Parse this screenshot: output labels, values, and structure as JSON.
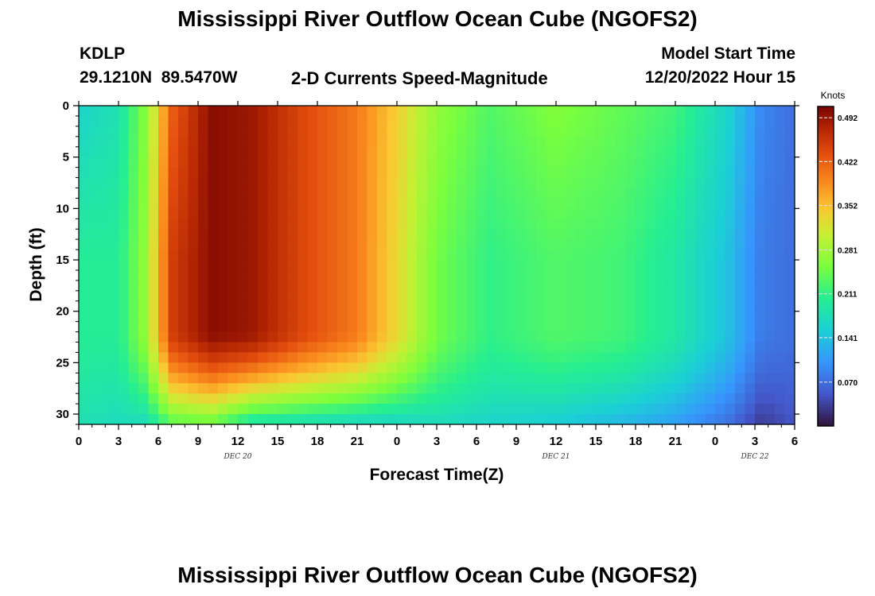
{
  "title": "Mississippi River Outflow Ocean Cube (NGOFS2)",
  "footer_title": "Mississippi River Outflow Ocean Cube (NGOFS2)",
  "station": {
    "id": "KDLP",
    "coords": "29.1210N  89.5470W"
  },
  "subtitle": "2-D Currents Speed-Magnitude",
  "model_start": {
    "label": "Model Start Time",
    "value": "12/20/2022 Hour 15"
  },
  "chart_data": {
    "type": "heatmap",
    "title": "2-D Currents Speed-Magnitude",
    "xlabel": "Forecast Time(Z)",
    "ylabel": "Depth (ft)",
    "x_hours_range": [
      0,
      54
    ],
    "x_tick_labels": [
      "0",
      "3",
      "6",
      "9",
      "12",
      "15",
      "18",
      "21",
      "0",
      "3",
      "6",
      "9",
      "12",
      "15",
      "18",
      "21",
      "0",
      "3",
      "6"
    ],
    "date_labels": [
      {
        "text": "DEC 20",
        "at_hour": 12
      },
      {
        "text": "DEC 21",
        "at_hour": 36
      },
      {
        "text": "DEC 22",
        "at_hour": 51
      }
    ],
    "y_range": [
      0,
      31
    ],
    "y_ticks": [
      0,
      5,
      10,
      15,
      20,
      25,
      30
    ],
    "y_inverted": true,
    "colorbar": {
      "unit": "Knots",
      "range": [
        0.0,
        0.51
      ],
      "tick_values": [
        0.492,
        0.422,
        0.352,
        0.281,
        0.211,
        0.141,
        0.07
      ],
      "tick_labels": [
        "0.492",
        "0.422",
        "0.352",
        "0.281",
        "0.211",
        "0.141",
        "0.070"
      ],
      "colormap": "turbo"
    },
    "approx_profile_knots": {
      "hours": [
        0,
        3,
        5,
        7,
        10,
        13,
        17,
        21,
        24,
        27,
        31,
        36,
        41,
        45,
        49,
        51.5,
        54
      ],
      "surface": [
        0.16,
        0.18,
        0.26,
        0.42,
        0.5,
        0.49,
        0.44,
        0.4,
        0.34,
        0.27,
        0.23,
        0.26,
        0.24,
        0.22,
        0.16,
        0.09,
        0.07
      ],
      "mid_depth": [
        0.2,
        0.2,
        0.27,
        0.45,
        0.5,
        0.49,
        0.44,
        0.4,
        0.33,
        0.25,
        0.21,
        0.23,
        0.22,
        0.19,
        0.14,
        0.08,
        0.07
      ],
      "bottom": [
        0.18,
        0.17,
        0.17,
        0.23,
        0.24,
        0.18,
        0.17,
        0.16,
        0.16,
        0.17,
        0.16,
        0.15,
        0.13,
        0.11,
        0.07,
        0.03,
        0.05
      ]
    }
  }
}
